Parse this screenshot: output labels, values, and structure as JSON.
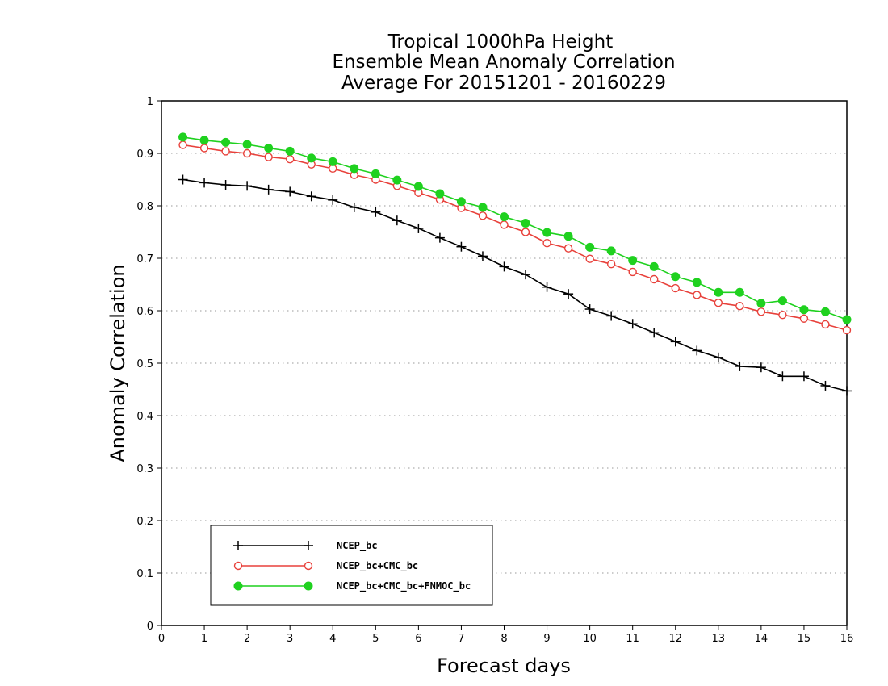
{
  "chart_data": {
    "type": "line",
    "title": [
      "Tropical 1000hPa Height",
      "Ensemble Mean Anomaly Correlation",
      "Average For 20151201 - 20160229"
    ],
    "xlabel": "Forecast days",
    "ylabel": "Anomaly Correlation",
    "xlim": [
      0,
      16
    ],
    "ylim": [
      0,
      1
    ],
    "xticks": [
      "0",
      "1",
      "2",
      "3",
      "4",
      "5",
      "6",
      "7",
      "8",
      "9",
      "10",
      "11",
      "12",
      "13",
      "14",
      "15",
      "16"
    ],
    "yticks": [
      "0",
      "0.1",
      "0.2",
      "0.3",
      "0.4",
      "0.5",
      "0.6",
      "0.7",
      "0.8",
      "0.9",
      "1"
    ],
    "grid": true,
    "legend_position": "bottom-left",
    "x": [
      0.5,
      1,
      1.5,
      2,
      2.5,
      3,
      3.5,
      4,
      4.5,
      5,
      5.5,
      6,
      6.5,
      7,
      7.5,
      8,
      8.5,
      9,
      9.5,
      10,
      10.5,
      11,
      11.5,
      12,
      12.5,
      13,
      13.5,
      14,
      14.5,
      15,
      15.5,
      16
    ],
    "series": [
      {
        "name": "NCEP_bc",
        "color": "#000000",
        "marker": "plus",
        "values": [
          0.85,
          0.844,
          0.84,
          0.838,
          0.831,
          0.827,
          0.818,
          0.811,
          0.797,
          0.788,
          0.772,
          0.757,
          0.739,
          0.722,
          0.704,
          0.684,
          0.669,
          0.645,
          0.632,
          0.603,
          0.59,
          0.575,
          0.558,
          0.541,
          0.524,
          0.511,
          0.494,
          0.492,
          0.475,
          0.475,
          0.457,
          0.447
        ]
      },
      {
        "name": "NCEP_bc+CMC_bc",
        "color": "#e8413b",
        "marker": "open-circle",
        "values": [
          0.916,
          0.91,
          0.904,
          0.9,
          0.893,
          0.889,
          0.879,
          0.871,
          0.859,
          0.85,
          0.838,
          0.825,
          0.812,
          0.796,
          0.781,
          0.764,
          0.75,
          0.729,
          0.719,
          0.699,
          0.689,
          0.674,
          0.66,
          0.643,
          0.63,
          0.615,
          0.609,
          0.598,
          0.592,
          0.585,
          0.574,
          0.563
        ]
      },
      {
        "name": "NCEP_bc+CMC_bc+FNMOC_bc",
        "color": "#1fd11f",
        "marker": "filled-circle",
        "values": [
          0.931,
          0.925,
          0.921,
          0.917,
          0.91,
          0.904,
          0.891,
          0.884,
          0.871,
          0.861,
          0.849,
          0.837,
          0.823,
          0.808,
          0.797,
          0.779,
          0.767,
          0.749,
          0.742,
          0.721,
          0.714,
          0.696,
          0.684,
          0.665,
          0.654,
          0.635,
          0.635,
          0.614,
          0.619,
          0.602,
          0.598,
          0.583
        ]
      }
    ]
  }
}
